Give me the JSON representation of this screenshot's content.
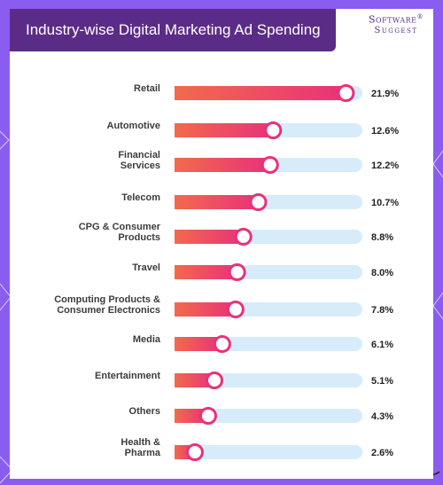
{
  "header": {
    "title": "Industry-wise Digital Marketing Ad Spending",
    "logo_line1": "Software",
    "logo_line2": "Suggest",
    "logo_reg": "®"
  },
  "colors": {
    "background": "#8a5cf0",
    "title_bar": "#5b2c87",
    "bar_start": "#f26a4b",
    "bar_end": "#e8327a",
    "track": "#d6ecfb",
    "marker_ring": "#e8327a"
  },
  "chart_data": {
    "type": "bar",
    "orientation": "horizontal",
    "title": "Industry-wise Digital Marketing Ad Spending",
    "categories": [
      [
        "Retail"
      ],
      [
        "Automotive"
      ],
      [
        "Financial",
        "Services"
      ],
      [
        "Telecom"
      ],
      [
        "CPG & Consumer",
        "Products"
      ],
      [
        "Travel"
      ],
      [
        "Computing Products &",
        "Consumer Electronics"
      ],
      [
        "Media"
      ],
      [
        "Entertainment"
      ],
      [
        "Others"
      ],
      [
        "Health &",
        "Pharma"
      ]
    ],
    "values": [
      21.9,
      12.6,
      12.2,
      10.7,
      8.8,
      8.0,
      7.8,
      6.1,
      5.1,
      4.3,
      2.6
    ],
    "value_labels": [
      "21.9%",
      "12.6%",
      "12.2%",
      "10.7%",
      "8.8%",
      "8.0%",
      "7.8%",
      "6.1%",
      "5.1%",
      "4.3%",
      "2.6%"
    ],
    "unit": "%",
    "grid": false,
    "legend": "none"
  }
}
